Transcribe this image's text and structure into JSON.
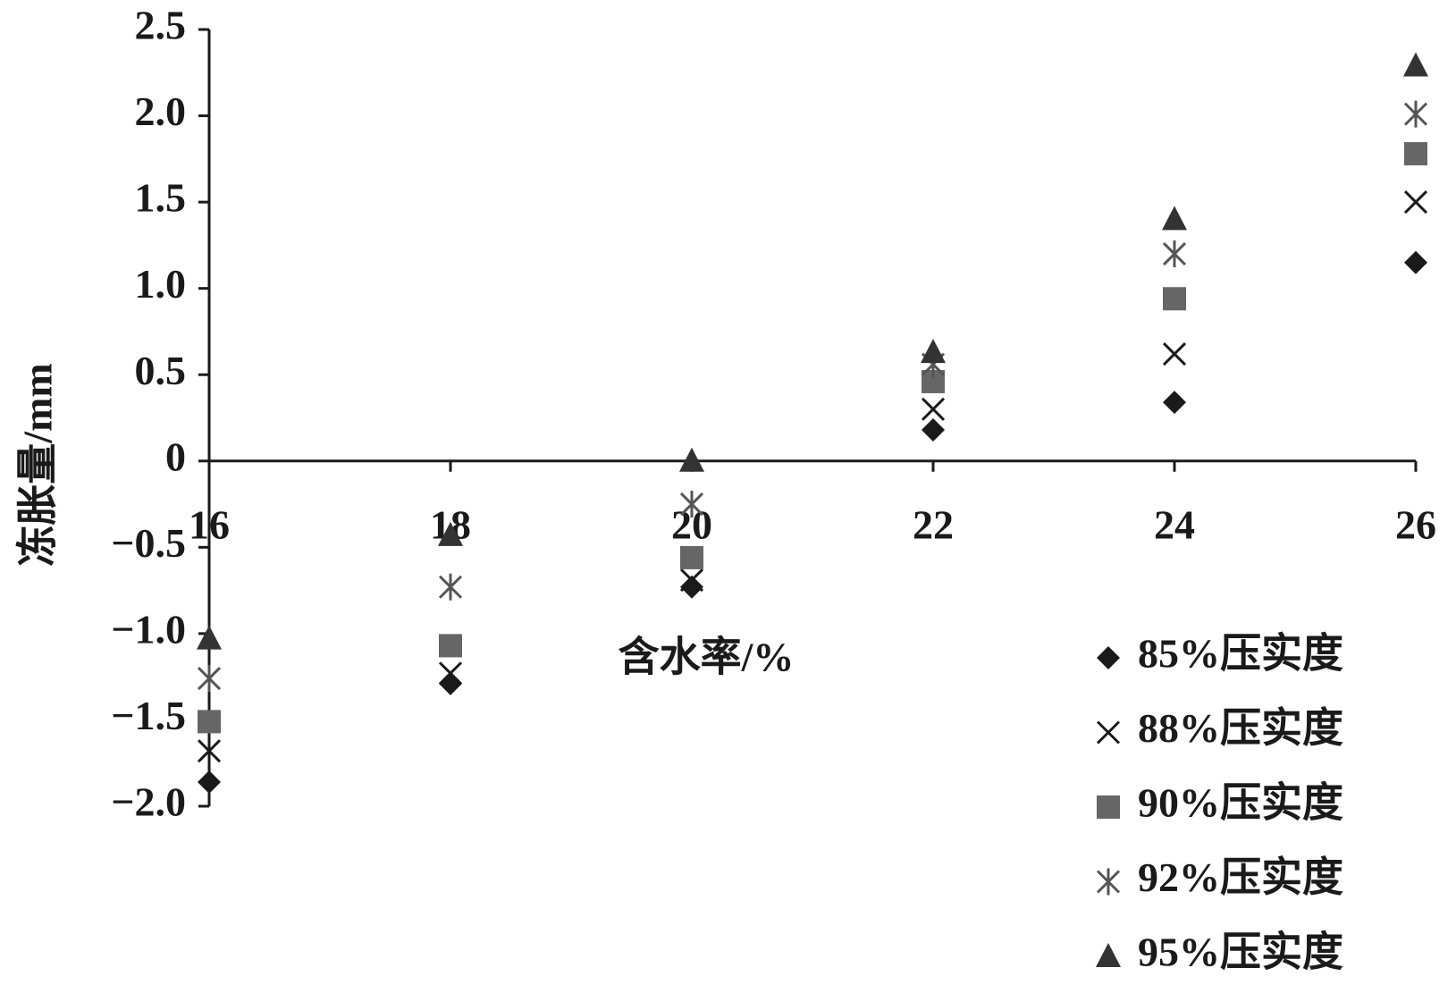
{
  "chart_data": {
    "type": "scatter",
    "x_label": "含水率/%",
    "y_label": "冻胀量/mm",
    "xlim": [
      16,
      26
    ],
    "xticks": [
      16,
      18,
      20,
      22,
      24,
      26
    ],
    "ylim": [
      -2.0,
      2.5
    ],
    "yticks": [
      2.5,
      {
        "value": 2.0,
        "label": "2.0"
      },
      1.5,
      {
        "value": 1.0,
        "label": "1.0"
      },
      0.5,
      0,
      {
        "value": -0.5,
        "label": "−0.5"
      },
      {
        "value": -1.0,
        "label": "−1.0"
      },
      {
        "value": -1.5,
        "label": "−1.5"
      },
      {
        "value": -2.0,
        "label": "−2.0"
      }
    ],
    "legend": "bottom-right",
    "series": [
      {
        "name": "85%压实度",
        "color": "#1a1a1a",
        "marker": "diamond",
        "x": [
          16,
          18,
          20,
          22,
          24,
          26
        ],
        "values": [
          -1.86,
          -1.29,
          -0.73,
          0.18,
          0.34,
          1.15
        ]
      },
      {
        "name": "88%压实度",
        "color": "#1a1a1a",
        "marker": "x",
        "x": [
          16,
          18,
          20,
          22,
          24,
          26
        ],
        "values": [
          -1.68,
          -1.23,
          -0.69,
          0.3,
          0.62,
          1.5
        ]
      },
      {
        "name": "90%压实度",
        "color": "#666666",
        "marker": "square",
        "x": [
          16,
          18,
          20,
          22,
          24,
          26
        ],
        "values": [
          -1.51,
          -1.07,
          -0.56,
          0.46,
          0.94,
          1.78
        ]
      },
      {
        "name": "92%压实度",
        "color": "#555555",
        "marker": "asterisk",
        "x": [
          16,
          18,
          20,
          22,
          24,
          26
        ],
        "values": [
          -1.26,
          -0.73,
          -0.25,
          0.56,
          1.2,
          2.01
        ]
      },
      {
        "name": "95%压实度",
        "color": "#333333",
        "marker": "triangle",
        "x": [
          16,
          18,
          20,
          22,
          24,
          26
        ],
        "values": [
          -1.03,
          -0.43,
          0,
          0.63,
          1.4,
          2.29
        ]
      }
    ]
  }
}
